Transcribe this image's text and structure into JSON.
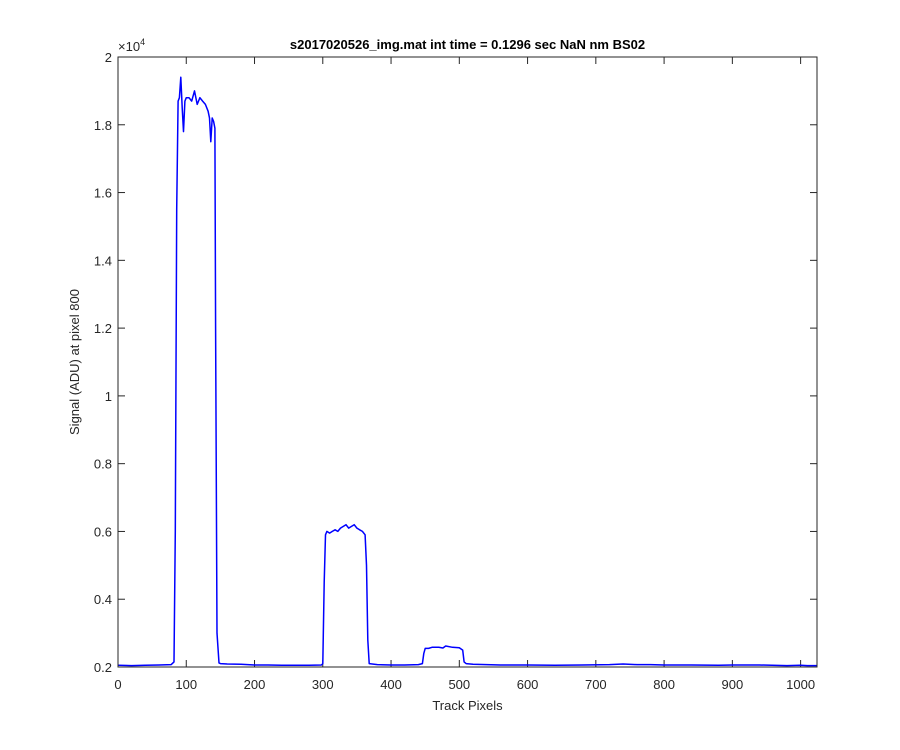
{
  "chart_data": {
    "type": "line",
    "title": "s2017020526_img.mat int time = 0.1296 sec  NaN nm BS02",
    "xlabel": "Track Pixels",
    "ylabel": "Signal (ADU) at pixel 800",
    "y_exponent_label": "×10",
    "y_exponent_power": "4",
    "xlim": [
      0,
      1024
    ],
    "ylim": [
      0.2,
      2.0
    ],
    "y_scale_note": "values in units of 1e4",
    "x_ticks": [
      0,
      100,
      200,
      300,
      400,
      500,
      600,
      700,
      800,
      900,
      1000
    ],
    "x_tick_labels": [
      "0",
      "100",
      "200",
      "300",
      "400",
      "500",
      "600",
      "700",
      "800",
      "900",
      "1000"
    ],
    "y_ticks": [
      0.2,
      0.4,
      0.6,
      0.8,
      1.0,
      1.2,
      1.4,
      1.6,
      1.8,
      2.0
    ],
    "y_tick_labels": [
      "0.2",
      "0.4",
      "0.6",
      "0.8",
      "1",
      "1.2",
      "1.4",
      "1.6",
      "1.8",
      "2"
    ],
    "grid": false,
    "line_color": "#0000ff",
    "series": [
      {
        "x": [
          0,
          20,
          40,
          60,
          78,
          82,
          84,
          86,
          88,
          90,
          92,
          94,
          96,
          98,
          100,
          104,
          108,
          112,
          116,
          120,
          124,
          128,
          132,
          134,
          136,
          138,
          140,
          142,
          143,
          145,
          148,
          150,
          160,
          180,
          200,
          220,
          240,
          260,
          280,
          298,
          300,
          302,
          304,
          306,
          310,
          314,
          318,
          322,
          326,
          330,
          334,
          338,
          342,
          346,
          350,
          354,
          358,
          362,
          364,
          366,
          368,
          380,
          400,
          420,
          440,
          446,
          448,
          450,
          455,
          460,
          470,
          476,
          480,
          490,
          500,
          505,
          507,
          510,
          520,
          540,
          560,
          580,
          600,
          640,
          680,
          720,
          740,
          760,
          780,
          800,
          840,
          880,
          900,
          940,
          980,
          1000,
          1010,
          1024
        ],
        "y": [
          0.205,
          0.204,
          0.205,
          0.206,
          0.207,
          0.215,
          0.6,
          1.55,
          1.87,
          1.88,
          1.94,
          1.85,
          1.78,
          1.87,
          1.88,
          1.88,
          1.87,
          1.9,
          1.86,
          1.88,
          1.87,
          1.86,
          1.84,
          1.82,
          1.75,
          1.82,
          1.81,
          1.79,
          1.2,
          0.3,
          0.212,
          0.21,
          0.209,
          0.208,
          0.206,
          0.206,
          0.205,
          0.205,
          0.205,
          0.206,
          0.21,
          0.45,
          0.59,
          0.6,
          0.595,
          0.6,
          0.605,
          0.6,
          0.61,
          0.615,
          0.62,
          0.61,
          0.615,
          0.62,
          0.61,
          0.605,
          0.6,
          0.59,
          0.5,
          0.28,
          0.21,
          0.207,
          0.206,
          0.206,
          0.207,
          0.21,
          0.24,
          0.255,
          0.255,
          0.258,
          0.258,
          0.256,
          0.262,
          0.258,
          0.257,
          0.25,
          0.215,
          0.21,
          0.208,
          0.207,
          0.206,
          0.206,
          0.206,
          0.205,
          0.206,
          0.207,
          0.209,
          0.207,
          0.207,
          0.206,
          0.206,
          0.205,
          0.206,
          0.206,
          0.204,
          0.205,
          0.204,
          0.204
        ]
      }
    ]
  }
}
